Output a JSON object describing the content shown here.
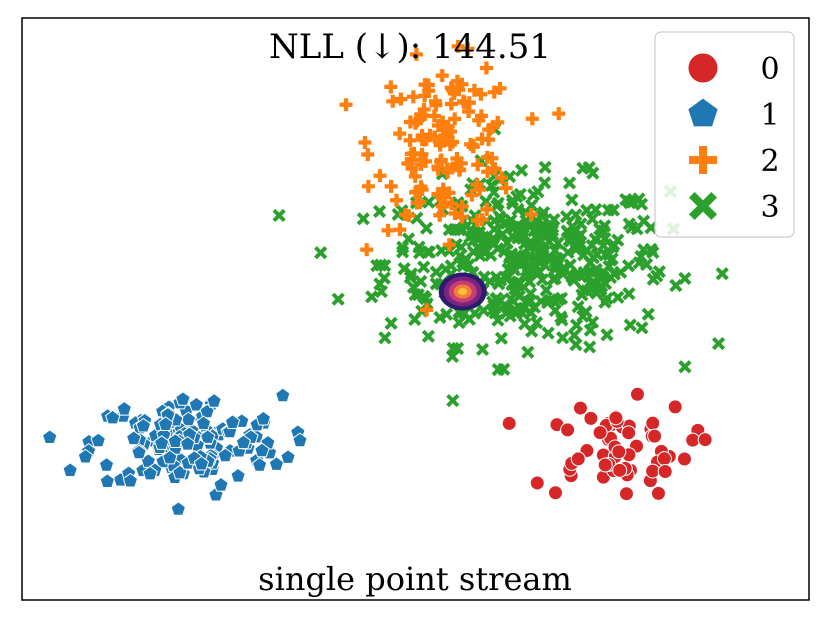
{
  "chart_data": {
    "type": "scatter",
    "title": "NLL (↓): 144.51",
    "xlabel": "single point stream",
    "ylabel": "",
    "xticks": [],
    "yticks": [],
    "xlim": [
      0,
      100
    ],
    "ylim": [
      0,
      100
    ],
    "grid": false,
    "legend_position": "top-right",
    "legend": [
      {
        "label": "0",
        "marker": "circle",
        "color": "#d62728"
      },
      {
        "label": "1",
        "marker": "pentagon",
        "color": "#1f77b4"
      },
      {
        "label": "2",
        "marker": "plus",
        "color": "#ff7f0e"
      },
      {
        "label": "3",
        "marker": "x",
        "color": "#2ca02c"
      }
    ],
    "clusters": [
      {
        "label": "0",
        "center": [
          75,
          26
        ],
        "spread": [
          5,
          4
        ],
        "count": 60,
        "color": "#d62728"
      },
      {
        "label": "1",
        "center": [
          21,
          27
        ],
        "spread": [
          6,
          4
        ],
        "count": 150,
        "color": "#1f77b4"
      },
      {
        "label": "2",
        "center": [
          54,
          78
        ],
        "spread": [
          4.5,
          7
        ],
        "count": 140,
        "color": "#ff7f0e"
      },
      {
        "label": "3",
        "center": [
          64,
          58
        ],
        "spread": [
          9,
          7
        ],
        "count": 420,
        "color": "#2ca02c"
      }
    ],
    "density_blob": {
      "center": [
        56,
        53
      ],
      "colors": [
        "#2d1b6e",
        "#7b2382",
        "#c73e73",
        "#f0803c",
        "#fdbf3b"
      ]
    }
  }
}
